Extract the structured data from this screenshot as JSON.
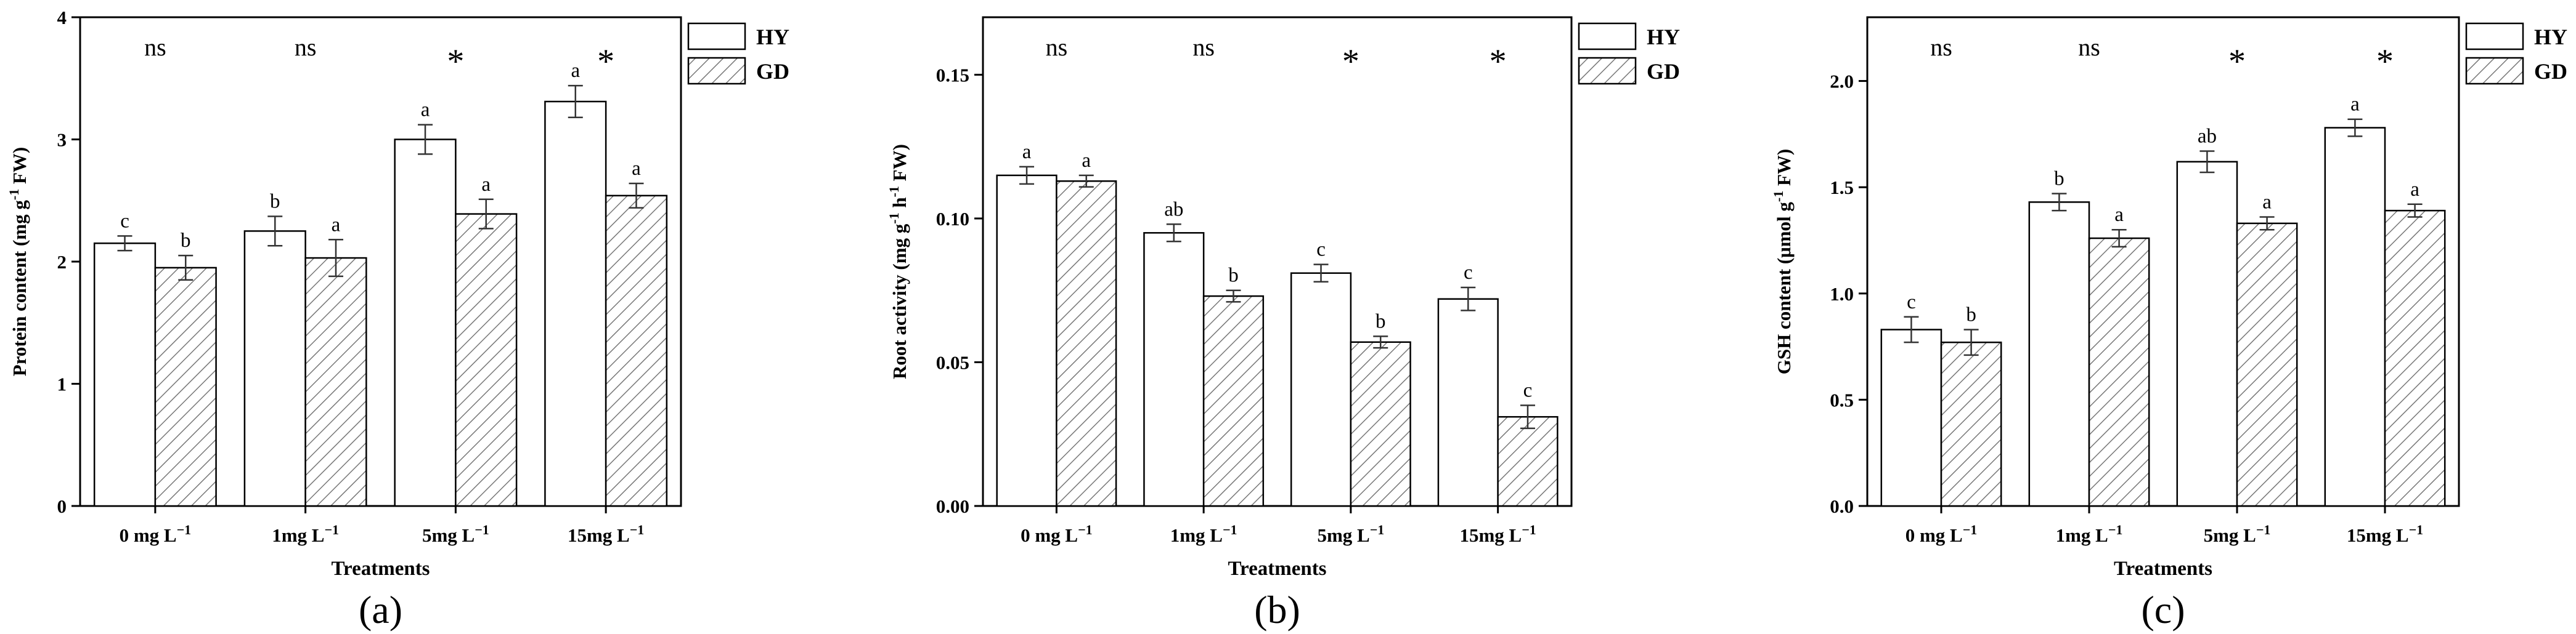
{
  "colors": {
    "axis": "#000000",
    "bar_fill": "#ffffff",
    "hatch": "#777777",
    "error": "#333333"
  },
  "chart_data": [
    {
      "type": "bar",
      "panel_label": "(a)",
      "xlabel": "Treatments",
      "ylabel_main": "Protein content (mg g",
      "ylabel_sup": "-1",
      "ylabel_tail": " FW)",
      "ylim": [
        0,
        4
      ],
      "yticks": [
        0,
        1,
        2,
        3,
        4
      ],
      "ytick_labels": [
        "0",
        "1",
        "2",
        "3",
        "4"
      ],
      "categories": [
        {
          "main": "0 mg L",
          "sup": "−1"
        },
        {
          "main": "1mg L",
          "sup": "−1"
        },
        {
          "main": "5mg L",
          "sup": "−1"
        },
        {
          "main": "15mg L",
          "sup": "−1"
        }
      ],
      "significance": [
        "ns",
        "ns",
        "*",
        "*"
      ],
      "series": [
        {
          "name": "HY",
          "pattern": "open",
          "values": [
            2.15,
            2.25,
            3.0,
            3.31
          ],
          "errors": [
            0.06,
            0.12,
            0.12,
            0.13
          ],
          "letters": [
            "c",
            "b",
            "a",
            "a"
          ]
        },
        {
          "name": "GD",
          "pattern": "hatched",
          "values": [
            1.95,
            2.03,
            2.39,
            2.54
          ],
          "errors": [
            0.1,
            0.15,
            0.12,
            0.1
          ],
          "letters": [
            "b",
            "a",
            "a",
            "a"
          ]
        }
      ]
    },
    {
      "type": "bar",
      "panel_label": "(b)",
      "xlabel": "Treatments",
      "ylabel_main": "Root activity (mg g",
      "ylabel_sup": "-1",
      "ylabel_tail": " h",
      "ylabel_sup2": "-1",
      "ylabel_tail2": " FW)",
      "ylim": [
        0,
        0.17
      ],
      "yticks": [
        0,
        0.05,
        0.1,
        0.15
      ],
      "ytick_labels": [
        "0.00",
        "0.05",
        "0.10",
        "0.15"
      ],
      "categories": [
        {
          "main": "0 mg L",
          "sup": "−1"
        },
        {
          "main": "1mg L",
          "sup": "−1"
        },
        {
          "main": "5mg L",
          "sup": "−1"
        },
        {
          "main": "15mg L",
          "sup": "−1"
        }
      ],
      "significance": [
        "ns",
        "ns",
        "*",
        "*"
      ],
      "series": [
        {
          "name": "HY",
          "pattern": "open",
          "values": [
            0.115,
            0.095,
            0.081,
            0.072
          ],
          "errors": [
            0.003,
            0.003,
            0.003,
            0.004
          ],
          "letters": [
            "a",
            "ab",
            "c",
            "c"
          ]
        },
        {
          "name": "GD",
          "pattern": "hatched",
          "values": [
            0.113,
            0.073,
            0.057,
            0.031
          ],
          "errors": [
            0.002,
            0.002,
            0.002,
            0.004
          ],
          "letters": [
            "a",
            "b",
            "b",
            "c"
          ]
        }
      ]
    },
    {
      "type": "bar",
      "panel_label": "(c)",
      "xlabel": "Treatments",
      "ylabel_main": "GSH content (μmol g",
      "ylabel_sup": "-1",
      "ylabel_tail": " FW)",
      "ylim": [
        0,
        2.3
      ],
      "yticks": [
        0,
        0.5,
        1.0,
        1.5,
        2.0
      ],
      "ytick_labels": [
        "0.0",
        "0.5",
        "1.0",
        "1.5",
        "2.0"
      ],
      "categories": [
        {
          "main": "0 mg L",
          "sup": "−1"
        },
        {
          "main": "1mg L",
          "sup": "−1"
        },
        {
          "main": "5mg L",
          "sup": "−1"
        },
        {
          "main": "15mg L",
          "sup": "−1"
        }
      ],
      "significance": [
        "ns",
        "ns",
        "*",
        "*"
      ],
      "series": [
        {
          "name": "HY",
          "pattern": "open",
          "values": [
            0.83,
            1.43,
            1.62,
            1.78
          ],
          "errors": [
            0.06,
            0.04,
            0.05,
            0.04
          ],
          "letters": [
            "c",
            "b",
            "ab",
            "a"
          ]
        },
        {
          "name": "GD",
          "pattern": "hatched",
          "values": [
            0.77,
            1.26,
            1.33,
            1.39
          ],
          "errors": [
            0.06,
            0.04,
            0.03,
            0.03
          ],
          "letters": [
            "b",
            "a",
            "a",
            "a"
          ]
        }
      ]
    }
  ]
}
